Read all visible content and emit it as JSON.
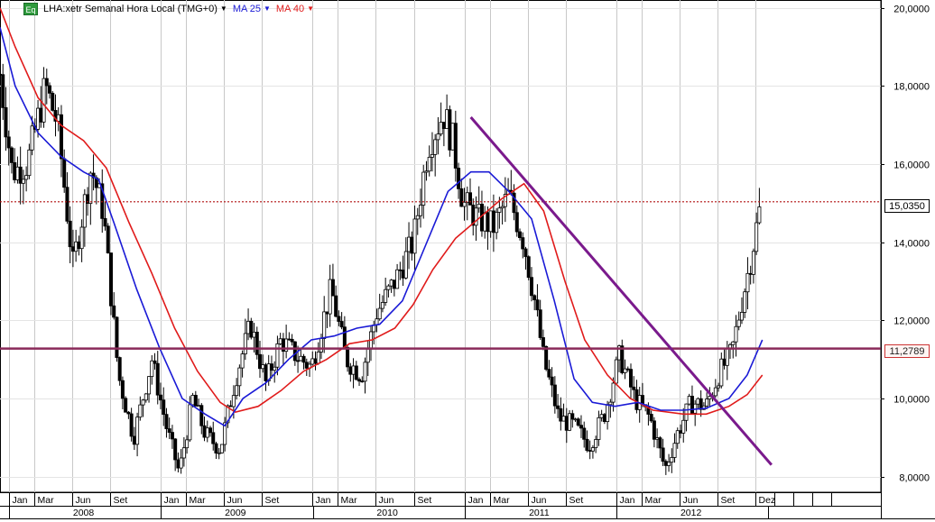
{
  "header": {
    "badge": "Eq",
    "symbol_label": "LHA:xetr Semanal Hora Local (TMG+0)",
    "ma25_label": "MA 25",
    "ma40_label": "MA 40"
  },
  "colors": {
    "ma25": "#1a1ad6",
    "ma40": "#e01b1b",
    "trendline": "#7a1a8c",
    "support": "#8a2a5a",
    "last_price_line": "#b01010",
    "candle_up": "#ffffff",
    "candle_down": "#000000"
  },
  "price_tags": {
    "last": "15,0350",
    "support": "11,2789"
  },
  "chart_data": {
    "type": "candlestick",
    "title": "",
    "y_ticks": [
      "8,0000",
      "10,0000",
      "12,0000",
      "14,0000",
      "16,0000",
      "18,0000",
      "20,0000"
    ],
    "ylim": [
      7.6,
      20.2
    ],
    "month_ticks": [
      {
        "t": 2007.958,
        "label": "Jan"
      },
      {
        "t": 2008.125,
        "label": "Mar"
      },
      {
        "t": 2008.375,
        "label": "Jun"
      },
      {
        "t": 2008.625,
        "label": "Set"
      },
      {
        "t": 2008.958,
        "label": "Jan"
      },
      {
        "t": 2009.125,
        "label": "Mar"
      },
      {
        "t": 2009.375,
        "label": "Jun"
      },
      {
        "t": 2009.625,
        "label": "Set"
      },
      {
        "t": 2009.958,
        "label": "Jan"
      },
      {
        "t": 2010.125,
        "label": "Mar"
      },
      {
        "t": 2010.375,
        "label": "Jun"
      },
      {
        "t": 2010.625,
        "label": "Set"
      },
      {
        "t": 2010.958,
        "label": "Jan"
      },
      {
        "t": 2011.125,
        "label": "Mar"
      },
      {
        "t": 2011.375,
        "label": "Jun"
      },
      {
        "t": 2011.625,
        "label": "Set"
      },
      {
        "t": 2011.958,
        "label": "Jan"
      },
      {
        "t": 2012.125,
        "label": "Mar"
      },
      {
        "t": 2012.375,
        "label": "Jun"
      },
      {
        "t": 2012.625,
        "label": "Set"
      },
      {
        "t": 2012.875,
        "label": "Dez"
      }
    ],
    "year_labels": [
      {
        "t": 2008.45,
        "label": "2008"
      },
      {
        "t": 2009.45,
        "label": "2009"
      },
      {
        "t": 2010.45,
        "label": "2010"
      },
      {
        "t": 2011.45,
        "label": "2011"
      },
      {
        "t": 2012.45,
        "label": "2012"
      }
    ],
    "xlim": [
      2007.9,
      2013.7
    ],
    "price_path": [
      {
        "t": 2007.9,
        "v": 18.3
      },
      {
        "t": 2007.98,
        "v": 15.8
      },
      {
        "t": 2008.08,
        "v": 16.0
      },
      {
        "t": 2008.2,
        "v": 18.0
      },
      {
        "t": 2008.28,
        "v": 17.0
      },
      {
        "t": 2008.38,
        "v": 13.4
      },
      {
        "t": 2008.5,
        "v": 15.9
      },
      {
        "t": 2008.58,
        "v": 14.8
      },
      {
        "t": 2008.68,
        "v": 10.6
      },
      {
        "t": 2008.78,
        "v": 9.0
      },
      {
        "t": 2008.9,
        "v": 11.0
      },
      {
        "t": 2009.0,
        "v": 9.2
      },
      {
        "t": 2009.08,
        "v": 8.1
      },
      {
        "t": 2009.17,
        "v": 10.0
      },
      {
        "t": 2009.25,
        "v": 9.1
      },
      {
        "t": 2009.35,
        "v": 8.7
      },
      {
        "t": 2009.45,
        "v": 10.5
      },
      {
        "t": 2009.55,
        "v": 11.9
      },
      {
        "t": 2009.65,
        "v": 10.4
      },
      {
        "t": 2009.75,
        "v": 11.5
      },
      {
        "t": 2009.85,
        "v": 11.1
      },
      {
        "t": 2009.95,
        "v": 10.8
      },
      {
        "t": 2010.08,
        "v": 12.8
      },
      {
        "t": 2010.18,
        "v": 11.0
      },
      {
        "t": 2010.28,
        "v": 10.6
      },
      {
        "t": 2010.38,
        "v": 12.2
      },
      {
        "t": 2010.5,
        "v": 13.0
      },
      {
        "t": 2010.62,
        "v": 14.0
      },
      {
        "t": 2010.72,
        "v": 16.5
      },
      {
        "t": 2010.82,
        "v": 17.3
      },
      {
        "t": 2010.88,
        "v": 16.6
      },
      {
        "t": 2010.95,
        "v": 15.0
      },
      {
        "t": 2011.05,
        "v": 14.6
      },
      {
        "t": 2011.15,
        "v": 14.4
      },
      {
        "t": 2011.25,
        "v": 15.2
      },
      {
        "t": 2011.35,
        "v": 14.0
      },
      {
        "t": 2011.42,
        "v": 12.5
      },
      {
        "t": 2011.48,
        "v": 11.0
      },
      {
        "t": 2011.58,
        "v": 9.5
      },
      {
        "t": 2011.68,
        "v": 9.3
      },
      {
        "t": 2011.78,
        "v": 8.8
      },
      {
        "t": 2011.88,
        "v": 9.6
      },
      {
        "t": 2011.98,
        "v": 11.1
      },
      {
        "t": 2012.08,
        "v": 10.0
      },
      {
        "t": 2012.18,
        "v": 9.5
      },
      {
        "t": 2012.28,
        "v": 8.2
      },
      {
        "t": 2012.36,
        "v": 9.1
      },
      {
        "t": 2012.45,
        "v": 9.9
      },
      {
        "t": 2012.55,
        "v": 9.8
      },
      {
        "t": 2012.63,
        "v": 10.6
      },
      {
        "t": 2012.72,
        "v": 11.2
      },
      {
        "t": 2012.78,
        "v": 12.4
      },
      {
        "t": 2012.84,
        "v": 13.5
      },
      {
        "t": 2012.91,
        "v": 15.0
      }
    ],
    "ma25_path": [
      {
        "t": 2007.9,
        "v": 19.5
      },
      {
        "t": 2008.0,
        "v": 18.0
      },
      {
        "t": 2008.15,
        "v": 16.8
      },
      {
        "t": 2008.3,
        "v": 16.2
      },
      {
        "t": 2008.45,
        "v": 15.8
      },
      {
        "t": 2008.55,
        "v": 15.6
      },
      {
        "t": 2008.65,
        "v": 14.5
      },
      {
        "t": 2008.8,
        "v": 12.8
      },
      {
        "t": 2008.95,
        "v": 11.3
      },
      {
        "t": 2009.1,
        "v": 10.0
      },
      {
        "t": 2009.25,
        "v": 9.6
      },
      {
        "t": 2009.38,
        "v": 9.3
      },
      {
        "t": 2009.5,
        "v": 10.0
      },
      {
        "t": 2009.65,
        "v": 10.4
      },
      {
        "t": 2009.8,
        "v": 11.0
      },
      {
        "t": 2009.95,
        "v": 11.5
      },
      {
        "t": 2010.1,
        "v": 11.6
      },
      {
        "t": 2010.25,
        "v": 11.8
      },
      {
        "t": 2010.4,
        "v": 11.9
      },
      {
        "t": 2010.55,
        "v": 12.5
      },
      {
        "t": 2010.7,
        "v": 13.9
      },
      {
        "t": 2010.85,
        "v": 15.3
      },
      {
        "t": 2011.0,
        "v": 15.8
      },
      {
        "t": 2011.12,
        "v": 15.8
      },
      {
        "t": 2011.25,
        "v": 15.3
      },
      {
        "t": 2011.4,
        "v": 14.6
      },
      {
        "t": 2011.55,
        "v": 12.5
      },
      {
        "t": 2011.68,
        "v": 10.5
      },
      {
        "t": 2011.8,
        "v": 9.9
      },
      {
        "t": 2011.95,
        "v": 9.8
      },
      {
        "t": 2012.1,
        "v": 9.9
      },
      {
        "t": 2012.25,
        "v": 9.7
      },
      {
        "t": 2012.4,
        "v": 9.7
      },
      {
        "t": 2012.55,
        "v": 9.75
      },
      {
        "t": 2012.7,
        "v": 10.0
      },
      {
        "t": 2012.82,
        "v": 10.6
      },
      {
        "t": 2012.92,
        "v": 11.5
      }
    ],
    "ma40_path": [
      {
        "t": 2007.9,
        "v": 20.0
      },
      {
        "t": 2008.0,
        "v": 19.0
      },
      {
        "t": 2008.15,
        "v": 17.7
      },
      {
        "t": 2008.3,
        "v": 17.0
      },
      {
        "t": 2008.45,
        "v": 16.6
      },
      {
        "t": 2008.6,
        "v": 15.9
      },
      {
        "t": 2008.75,
        "v": 14.5
      },
      {
        "t": 2008.9,
        "v": 13.2
      },
      {
        "t": 2009.05,
        "v": 11.8
      },
      {
        "t": 2009.2,
        "v": 10.7
      },
      {
        "t": 2009.35,
        "v": 9.9
      },
      {
        "t": 2009.45,
        "v": 9.65
      },
      {
        "t": 2009.6,
        "v": 9.8
      },
      {
        "t": 2009.75,
        "v": 10.2
      },
      {
        "t": 2009.9,
        "v": 10.7
      },
      {
        "t": 2010.05,
        "v": 11.0
      },
      {
        "t": 2010.2,
        "v": 11.4
      },
      {
        "t": 2010.35,
        "v": 11.5
      },
      {
        "t": 2010.5,
        "v": 11.8
      },
      {
        "t": 2010.62,
        "v": 12.4
      },
      {
        "t": 2010.75,
        "v": 13.3
      },
      {
        "t": 2010.9,
        "v": 14.1
      },
      {
        "t": 2011.05,
        "v": 14.6
      },
      {
        "t": 2011.2,
        "v": 15.1
      },
      {
        "t": 2011.35,
        "v": 15.5
      },
      {
        "t": 2011.48,
        "v": 14.8
      },
      {
        "t": 2011.62,
        "v": 13.0
      },
      {
        "t": 2011.75,
        "v": 11.5
      },
      {
        "t": 2011.9,
        "v": 10.6
      },
      {
        "t": 2012.05,
        "v": 10.0
      },
      {
        "t": 2012.2,
        "v": 9.7
      },
      {
        "t": 2012.4,
        "v": 9.6
      },
      {
        "t": 2012.55,
        "v": 9.6
      },
      {
        "t": 2012.7,
        "v": 9.8
      },
      {
        "t": 2012.82,
        "v": 10.1
      },
      {
        "t": 2012.92,
        "v": 10.6
      }
    ],
    "trendline": {
      "t1": 2011.0,
      "v1": 17.2,
      "t2": 2012.98,
      "v2": 8.3
    },
    "support_level": 11.2789,
    "last_price": 15.035
  }
}
